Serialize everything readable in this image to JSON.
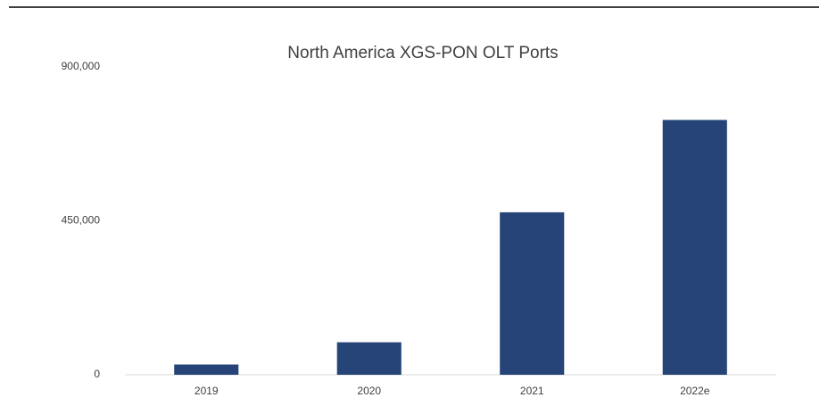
{
  "chart_data": {
    "type": "bar",
    "title": "North America XGS-PON OLT Ports",
    "categories": [
      "2019",
      "2020",
      "2021",
      "2022e"
    ],
    "values": [
      30000,
      95000,
      475000,
      745000
    ],
    "color": "#264478",
    "ylim": [
      0,
      900000
    ],
    "yticks": [
      0,
      {
        "value": 450000,
        "label": "450,000"
      },
      {
        "value": 900000,
        "label": "900,000"
      }
    ],
    "grid": false
  }
}
